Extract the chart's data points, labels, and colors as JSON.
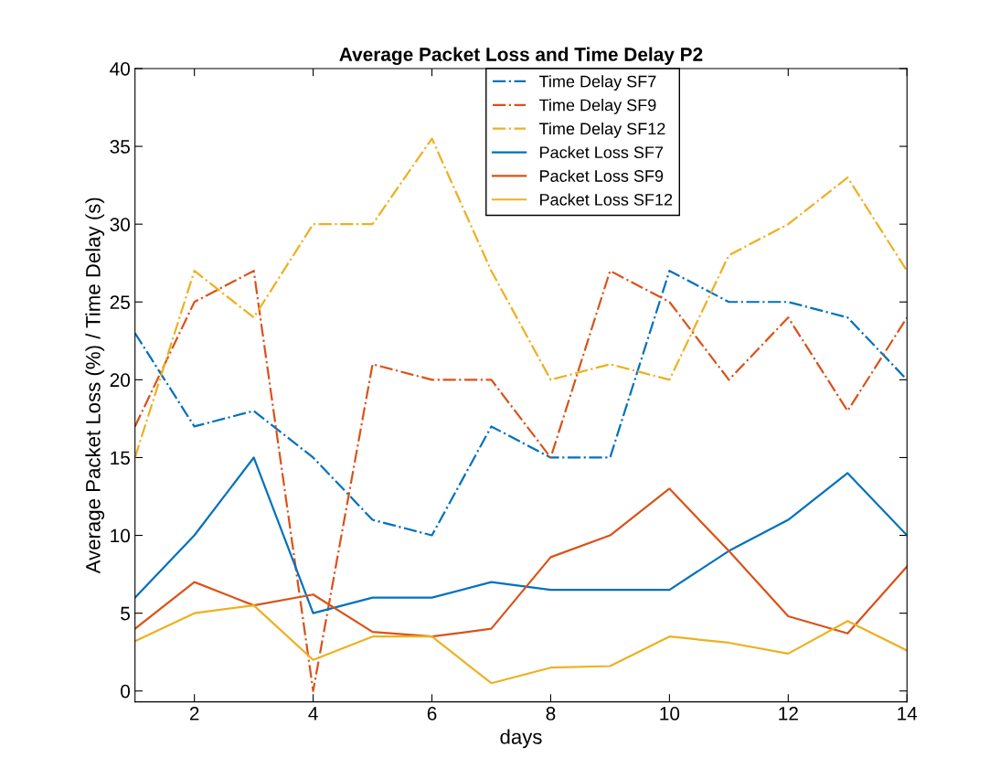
{
  "chart_data": {
    "type": "line",
    "title": "Average Packet Loss and Time Delay P2",
    "xlabel": "days",
    "ylabel": "Average Packet Loss (%) / Time Delay (s)",
    "x": [
      1,
      2,
      3,
      4,
      5,
      6,
      7,
      8,
      9,
      10,
      11,
      12,
      13,
      14
    ],
    "series": [
      {
        "name": "Time Delay SF7",
        "color": "#0072bd",
        "line_style": "dashdot",
        "values": [
          23,
          17,
          18,
          15,
          11,
          10,
          17,
          15,
          15,
          27,
          25,
          25,
          24,
          20
        ]
      },
      {
        "name": "Time Delay SF9",
        "color": "#d95319",
        "line_style": "dashdot",
        "values": [
          17,
          25,
          27,
          0,
          21,
          20,
          20,
          15,
          27,
          25,
          20,
          24,
          18,
          24
        ]
      },
      {
        "name": "Time Delay SF12",
        "color": "#edb120",
        "line_style": "dashdot",
        "values": [
          15,
          27,
          24,
          30,
          30,
          35.5,
          27,
          20,
          21,
          20,
          28,
          30,
          33,
          27
        ]
      },
      {
        "name": "Packet Loss SF7",
        "color": "#0072bd",
        "line_style": "solid",
        "values": [
          6,
          10,
          15,
          5,
          6,
          6,
          7,
          6.5,
          6.5,
          6.5,
          9,
          11,
          14,
          10
        ]
      },
      {
        "name": "Packet Loss SF9",
        "color": "#d95319",
        "line_style": "solid",
        "values": [
          4,
          7,
          5.5,
          6.2,
          3.8,
          3.5,
          4,
          8.6,
          10,
          13,
          9,
          4.8,
          3.7,
          8
        ]
      },
      {
        "name": "Packet Loss SF12",
        "color": "#edb120",
        "line_style": "solid",
        "values": [
          3.2,
          5,
          5.5,
          2,
          3.5,
          3.5,
          0.5,
          1.5,
          1.6,
          3.5,
          3.1,
          2.4,
          4.5,
          2.6
        ]
      }
    ],
    "xlim": [
      1,
      14
    ],
    "xticks": [
      2,
      4,
      6,
      8,
      10,
      12,
      14
    ],
    "ylim": [
      -0.7,
      40
    ],
    "yticks": [
      0,
      5,
      10,
      15,
      20,
      25,
      30,
      35,
      40
    ],
    "grid": false,
    "legend": "top",
    "marker": "none"
  }
}
